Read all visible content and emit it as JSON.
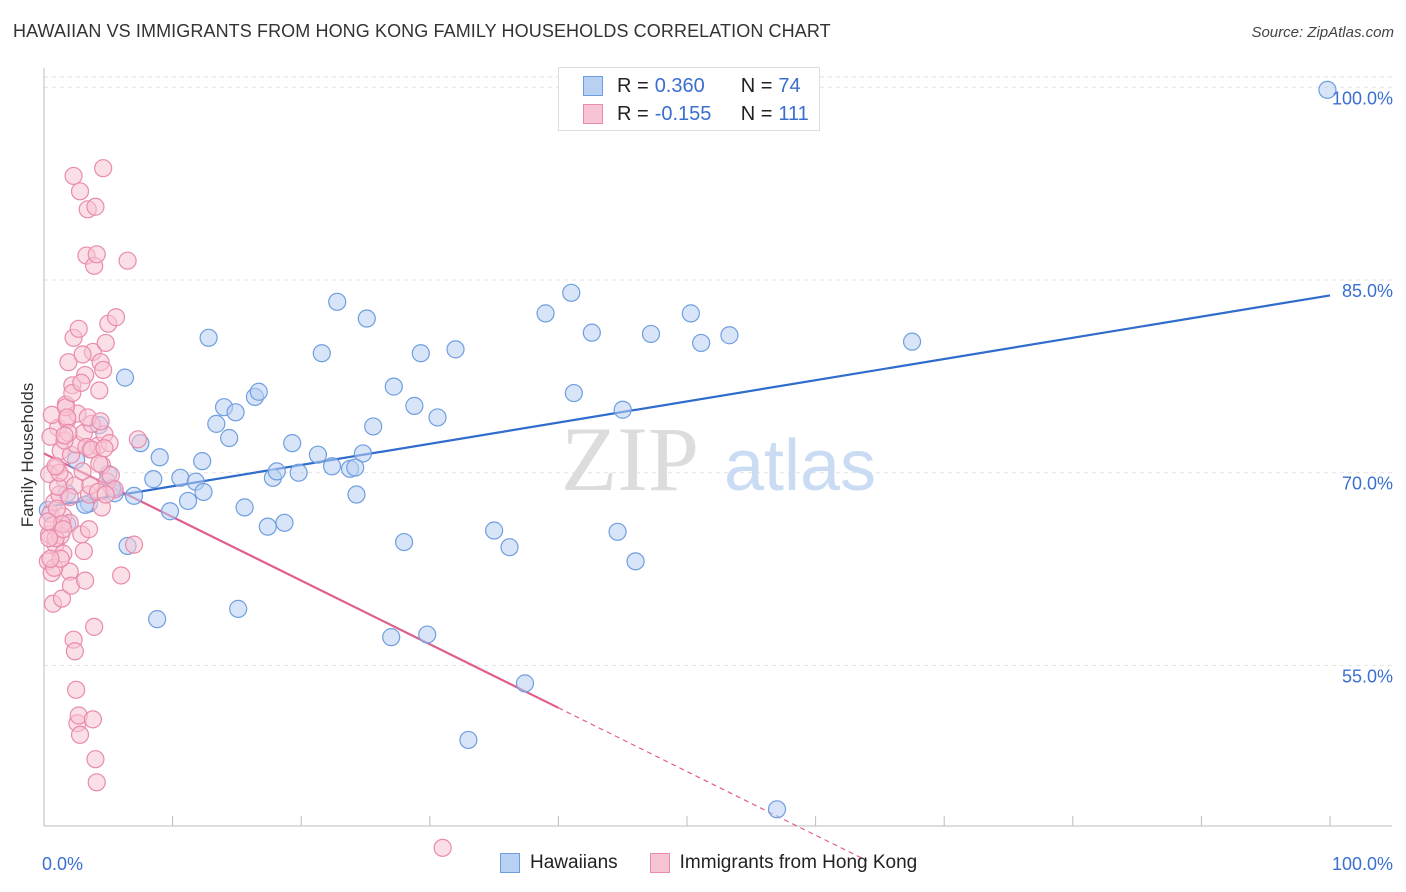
{
  "title": "HAWAIIAN VS IMMIGRANTS FROM HONG KONG FAMILY HOUSEHOLDS CORRELATION CHART",
  "source": "Source: ZipAtlas.com",
  "watermark": {
    "zip": "ZIP",
    "atlas": "atlas"
  },
  "legend": {
    "rows": [
      {
        "r_label": "R =",
        "r_value": "0.360",
        "n_label": "N =",
        "n_value": "74",
        "fill": "#b8d0f2",
        "stroke": "#6f9ee0"
      },
      {
        "r_label": "R =",
        "r_value": "-0.155",
        "n_label": "N =",
        "n_value": "111",
        "fill": "#f7c4d4",
        "stroke": "#e98bab"
      }
    ]
  },
  "bottom_legend": [
    {
      "label": "Hawaiians",
      "fill": "#b8d0f2",
      "stroke": "#6f9ee0"
    },
    {
      "label": "Immigrants from Hong Kong",
      "fill": "#f7c4d4",
      "stroke": "#e98bab"
    }
  ],
  "chart_data": {
    "type": "scatter",
    "title": "HAWAIIAN VS IMMIGRANTS FROM HONG KONG FAMILY HOUSEHOLDS CORRELATION CHART",
    "xlabel": "",
    "ylabel": "Family Households",
    "xlim": [
      0,
      100
    ],
    "ylim": [
      42.5,
      101.5
    ],
    "x_tick_labels": [
      "0.0%",
      "100.0%"
    ],
    "y_ticks": [
      55,
      70,
      85,
      100
    ],
    "y_tick_labels": [
      "55.0%",
      "70.0%",
      "85.0%",
      "100.0%"
    ],
    "grid": true,
    "legend_position": "top-center",
    "colors": {
      "blue": "#2f6ccc",
      "pink": "#e05e8f",
      "axis_label": "#3a6fd0"
    },
    "series": [
      {
        "name": "Hawaiians",
        "color": "#6f9ee0",
        "fill": "#b8d0f2",
        "trend": {
          "x": [
            0,
            100
          ],
          "y": [
            67.3,
            83.8
          ]
        },
        "points": [
          [
            0.3,
            67.1
          ],
          [
            1.8,
            66.0
          ],
          [
            2.5,
            71.0
          ],
          [
            3.5,
            67.6
          ],
          [
            4.3,
            73.7
          ],
          [
            5.0,
            69.9
          ],
          [
            5.5,
            68.4
          ],
          [
            6.5,
            64.3
          ],
          [
            6.3,
            77.4
          ],
          [
            7.0,
            68.2
          ],
          [
            7.5,
            72.3
          ],
          [
            8.5,
            69.5
          ],
          [
            9.0,
            71.2
          ],
          [
            8.8,
            58.6
          ],
          [
            9.8,
            67.0
          ],
          [
            10.6,
            69.6
          ],
          [
            11.2,
            67.8
          ],
          [
            11.8,
            69.3
          ],
          [
            12.4,
            68.5
          ],
          [
            12.3,
            70.9
          ],
          [
            12.8,
            80.5
          ],
          [
            13.4,
            73.8
          ],
          [
            14.0,
            75.1
          ],
          [
            14.4,
            72.7
          ],
          [
            14.9,
            74.7
          ],
          [
            15.1,
            59.4
          ],
          [
            15.6,
            67.3
          ],
          [
            16.4,
            75.9
          ],
          [
            16.7,
            76.3
          ],
          [
            17.4,
            65.8
          ],
          [
            17.8,
            69.6
          ],
          [
            18.7,
            66.1
          ],
          [
            19.3,
            72.3
          ],
          [
            19.8,
            70.0
          ],
          [
            21.3,
            71.4
          ],
          [
            21.6,
            79.3
          ],
          [
            22.4,
            70.5
          ],
          [
            22.8,
            83.3
          ],
          [
            23.8,
            70.3
          ],
          [
            24.3,
            68.3
          ],
          [
            24.8,
            71.5
          ],
          [
            25.1,
            82.0
          ],
          [
            25.6,
            73.6
          ],
          [
            27.0,
            57.2
          ],
          [
            27.2,
            76.7
          ],
          [
            28.0,
            64.6
          ],
          [
            28.8,
            75.2
          ],
          [
            29.3,
            79.3
          ],
          [
            30.6,
            74.3
          ],
          [
            29.8,
            57.4
          ],
          [
            32.0,
            79.6
          ],
          [
            33.0,
            49.2
          ],
          [
            35.0,
            65.5
          ],
          [
            36.2,
            64.2
          ],
          [
            37.4,
            53.6
          ],
          [
            39.0,
            82.4
          ],
          [
            41.0,
            84.0
          ],
          [
            41.2,
            76.2
          ],
          [
            42.6,
            80.9
          ],
          [
            44.6,
            65.4
          ],
          [
            45.0,
            74.9
          ],
          [
            46.0,
            63.1
          ],
          [
            47.2,
            80.8
          ],
          [
            50.3,
            82.4
          ],
          [
            51.1,
            80.1
          ],
          [
            53.3,
            80.7
          ],
          [
            57.0,
            43.8
          ],
          [
            67.5,
            80.2
          ],
          [
            99.8,
            99.8
          ],
          [
            1.8,
            68.4
          ],
          [
            5.3,
            68.8
          ],
          [
            3.2,
            67.5
          ],
          [
            18.1,
            70.1
          ],
          [
            24.2,
            70.4
          ]
        ]
      },
      {
        "name": "Immigrants from Hong Kong",
        "color": "#e98bab",
        "fill": "#f7c4d4",
        "trend": {
          "x": [
            0,
            40
          ],
          "y": [
            71.5,
            51.7
          ]
        },
        "trend_ext": {
          "x": [
            40,
            64
          ],
          "y": [
            51.7,
            39.8
          ]
        },
        "points": [
          [
            0.3,
            63.1
          ],
          [
            0.4,
            65.2
          ],
          [
            0.5,
            66.8
          ],
          [
            0.6,
            62.2
          ],
          [
            0.7,
            59.8
          ],
          [
            0.8,
            67.7
          ],
          [
            0.9,
            64.4
          ],
          [
            1.0,
            70.4
          ],
          [
            1.1,
            73.5
          ],
          [
            1.2,
            68.3
          ],
          [
            1.3,
            65.1
          ],
          [
            1.3,
            71.7
          ],
          [
            1.4,
            60.2
          ],
          [
            1.5,
            63.7
          ],
          [
            1.5,
            66.6
          ],
          [
            1.6,
            69.5
          ],
          [
            1.7,
            75.3
          ],
          [
            1.8,
            74.1
          ],
          [
            1.9,
            78.6
          ],
          [
            2.0,
            62.3
          ],
          [
            2.0,
            66.1
          ],
          [
            2.1,
            71.4
          ],
          [
            2.2,
            76.8
          ],
          [
            2.3,
            80.5
          ],
          [
            2.3,
            93.1
          ],
          [
            2.4,
            69.0
          ],
          [
            2.5,
            72.2
          ],
          [
            2.6,
            74.6
          ],
          [
            2.7,
            81.2
          ],
          [
            2.8,
            91.9
          ],
          [
            2.9,
            65.2
          ],
          [
            3.0,
            70.1
          ],
          [
            3.1,
            73.1
          ],
          [
            3.2,
            77.6
          ],
          [
            3.3,
            86.9
          ],
          [
            3.4,
            90.5
          ],
          [
            3.5,
            68.3
          ],
          [
            3.6,
            71.8
          ],
          [
            3.7,
            73.8
          ],
          [
            3.8,
            79.4
          ],
          [
            3.9,
            86.1
          ],
          [
            4.0,
            90.7
          ],
          [
            4.1,
            87.0
          ],
          [
            4.2,
            72.1
          ],
          [
            4.3,
            76.4
          ],
          [
            4.4,
            78.6
          ],
          [
            4.5,
            70.6
          ],
          [
            4.6,
            93.7
          ],
          [
            4.7,
            73.0
          ],
          [
            4.8,
            80.1
          ],
          [
            4.9,
            69.3
          ],
          [
            5.0,
            81.6
          ],
          [
            5.1,
            72.3
          ],
          [
            5.2,
            69.8
          ],
          [
            5.5,
            68.7
          ],
          [
            5.6,
            82.1
          ],
          [
            6.0,
            62.0
          ],
          [
            6.5,
            86.5
          ],
          [
            7.0,
            64.4
          ],
          [
            7.3,
            72.6
          ],
          [
            0.4,
            69.9
          ],
          [
            0.5,
            72.8
          ],
          [
            0.6,
            74.5
          ],
          [
            0.7,
            65.9
          ],
          [
            0.8,
            62.6
          ],
          [
            0.9,
            64.9
          ],
          [
            1.0,
            67.2
          ],
          [
            1.1,
            68.9
          ],
          [
            1.2,
            70.0
          ],
          [
            1.3,
            63.3
          ],
          [
            1.4,
            66.0
          ],
          [
            1.5,
            65.6
          ],
          [
            1.6,
            72.5
          ],
          [
            1.7,
            75.1
          ],
          [
            1.8,
            74.3
          ],
          [
            1.9,
            73.1
          ],
          [
            2.0,
            68.1
          ],
          [
            2.1,
            61.2
          ],
          [
            2.2,
            76.2
          ],
          [
            2.3,
            57.0
          ],
          [
            2.4,
            56.1
          ],
          [
            2.5,
            53.1
          ],
          [
            2.6,
            50.5
          ],
          [
            2.7,
            51.1
          ],
          [
            2.8,
            49.6
          ],
          [
            2.9,
            77.0
          ],
          [
            3.0,
            79.2
          ],
          [
            3.1,
            63.9
          ],
          [
            3.2,
            61.6
          ],
          [
            3.3,
            72.0
          ],
          [
            3.4,
            74.3
          ],
          [
            3.5,
            65.6
          ],
          [
            3.6,
            69.0
          ],
          [
            3.7,
            71.8
          ],
          [
            3.8,
            50.8
          ],
          [
            3.9,
            58.0
          ],
          [
            4.0,
            47.7
          ],
          [
            4.1,
            45.9
          ],
          [
            4.2,
            68.5
          ],
          [
            4.3,
            70.7
          ],
          [
            4.4,
            74.0
          ],
          [
            4.5,
            67.3
          ],
          [
            4.6,
            78.0
          ],
          [
            4.7,
            71.9
          ],
          [
            4.8,
            68.3
          ],
          [
            0.3,
            66.2
          ],
          [
            0.4,
            64.9
          ],
          [
            0.5,
            63.3
          ],
          [
            31.0,
            40.8
          ],
          [
            0.9,
            70.5
          ],
          [
            1.6,
            72.9
          ]
        ]
      }
    ]
  }
}
